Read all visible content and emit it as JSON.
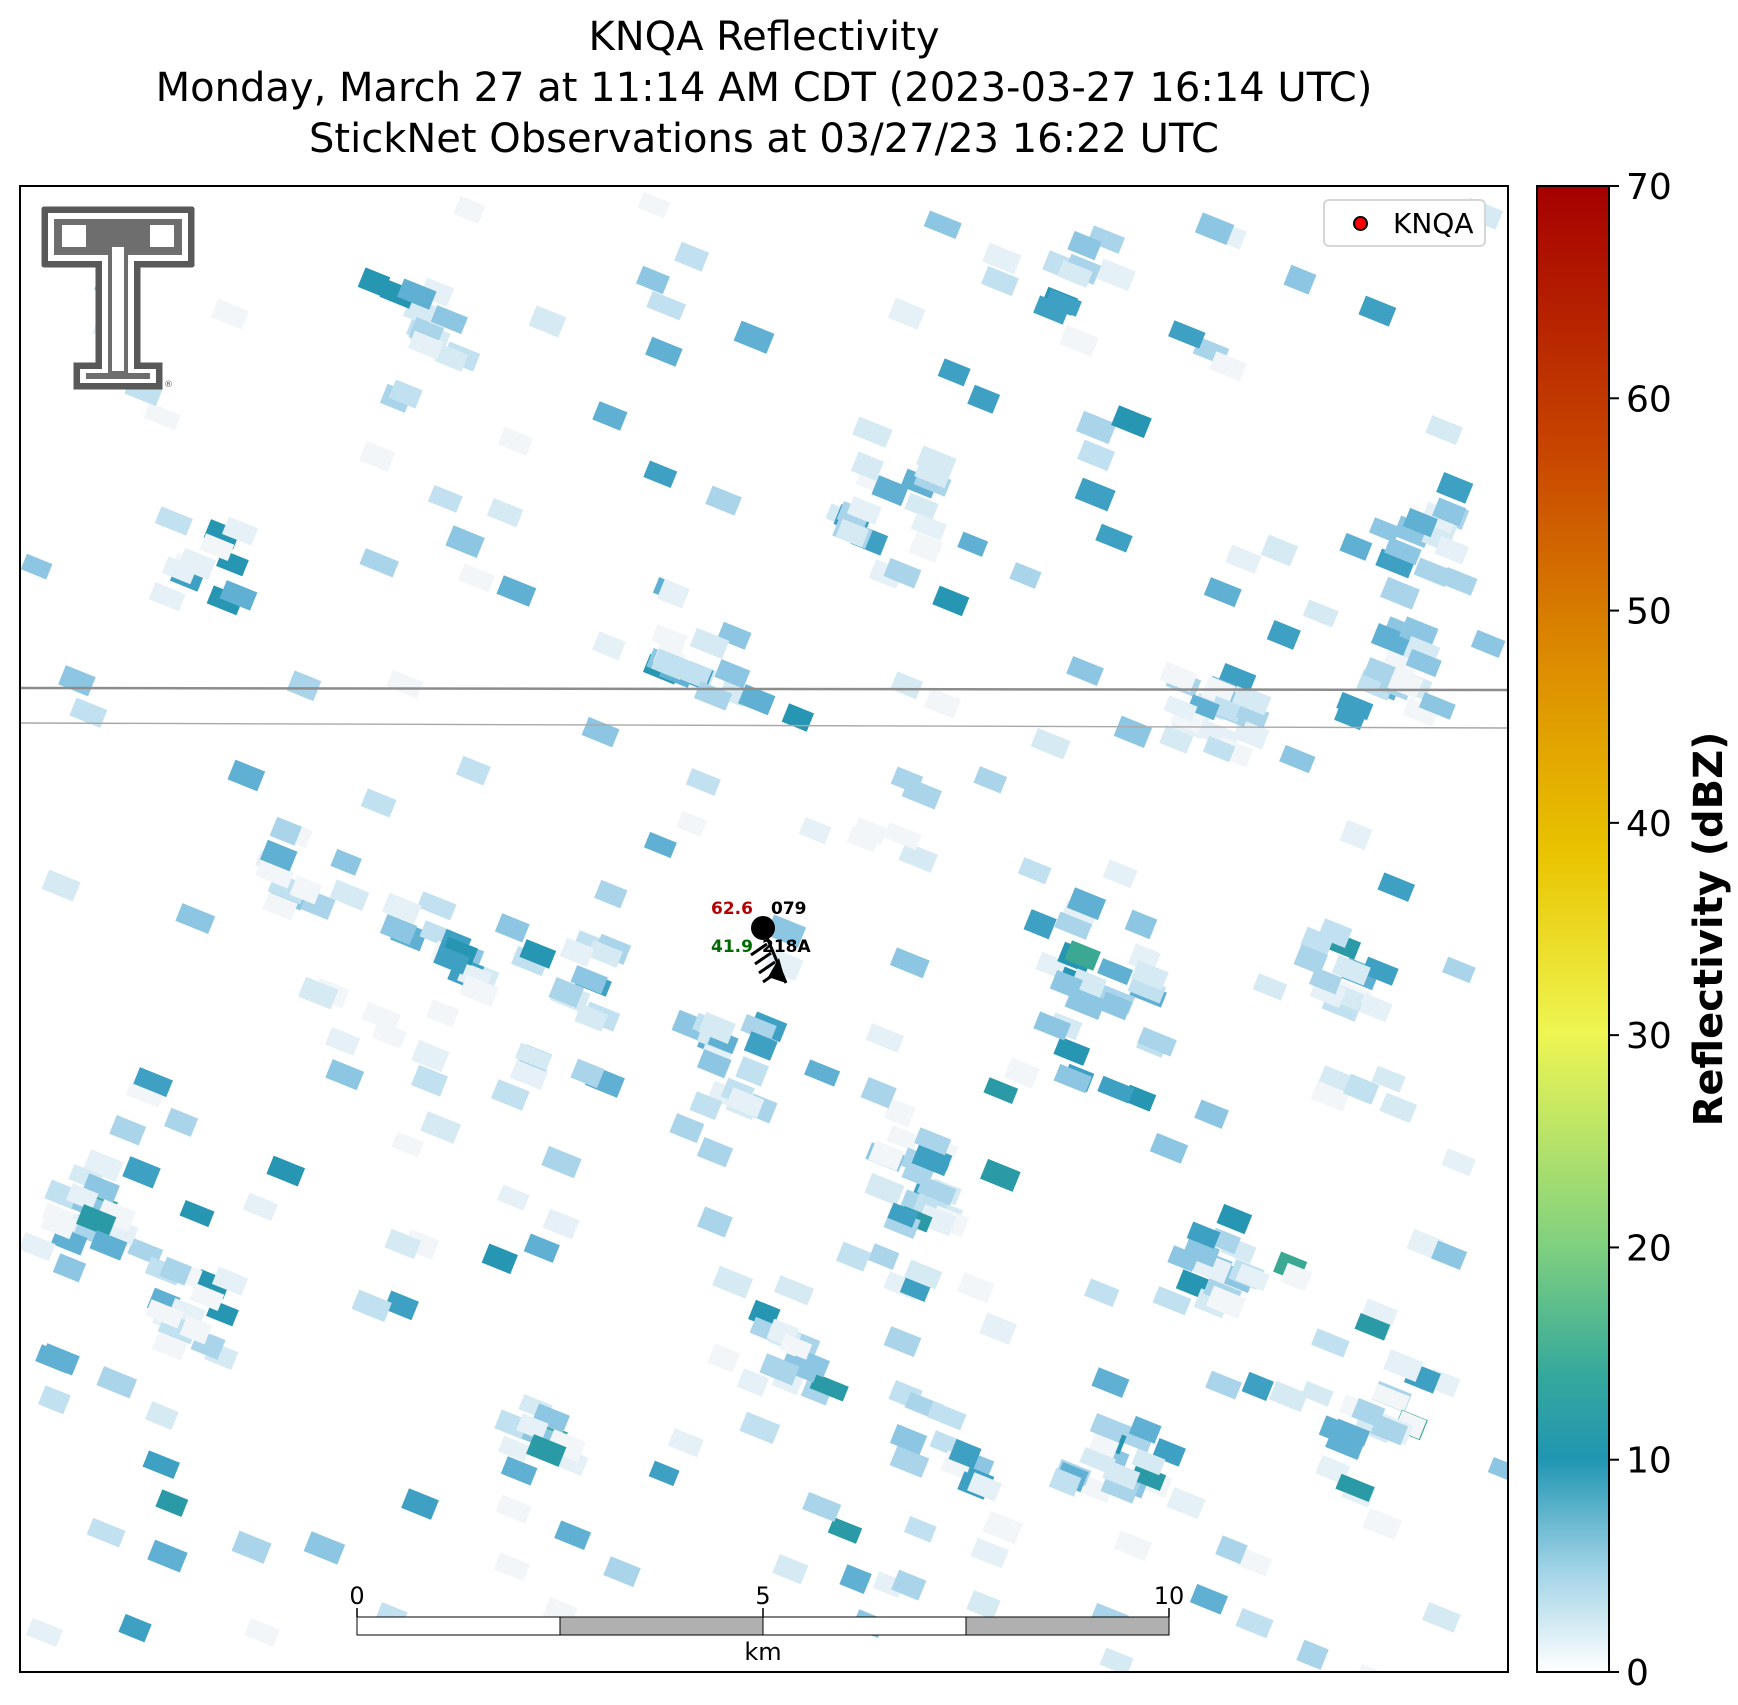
{
  "title": {
    "line1": "KNQA Reflectivity",
    "line2": "Monday, March 27 at 11:14 AM CDT (2023-03-27 16:14 UTC)",
    "line3": "StickNet Observations at 03/27/23 16:22 UTC"
  },
  "legend": {
    "label": "KNQA",
    "marker_color": "#ff0000"
  },
  "colorbar": {
    "label": "Reflectivity (dBZ)",
    "min": 0,
    "max": 70,
    "ticks": [
      "0",
      "10",
      "20",
      "30",
      "40",
      "50",
      "60",
      "70"
    ],
    "colors": [
      "#ffffff",
      "#2a9bb5",
      "#7fd07f",
      "#f5f74f",
      "#e3b500",
      "#d96c00",
      "#b31a00",
      "#a80000"
    ]
  },
  "station": {
    "temperature": "62.6",
    "temperature_color": "#b30000",
    "dewpoint": "41.9",
    "dewpoint_color": "#006b00",
    "pressure_code": "079",
    "station_id": "218A"
  },
  "scale_bar": {
    "unit": "km",
    "labels": [
      "0",
      "5",
      "10"
    ]
  },
  "logo": {
    "name": "texas-tech-double-t"
  }
}
